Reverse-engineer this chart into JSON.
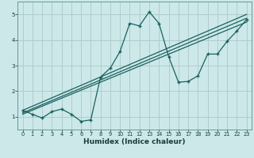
{
  "title": "",
  "xlabel": "Humidex (Indice chaleur)",
  "ylabel": "",
  "bg_color": "#cce8e8",
  "grid_color": "#b0cccc",
  "line_color": "#1a6060",
  "xlim": [
    -0.5,
    23.5
  ],
  "ylim": [
    0.5,
    5.5
  ],
  "xticks": [
    0,
    1,
    2,
    3,
    4,
    5,
    6,
    7,
    8,
    9,
    10,
    11,
    12,
    13,
    14,
    15,
    16,
    17,
    18,
    19,
    20,
    21,
    22,
    23
  ],
  "yticks": [
    1,
    2,
    3,
    4,
    5
  ],
  "main_x": [
    0,
    1,
    2,
    3,
    4,
    5,
    6,
    7,
    8,
    9,
    10,
    11,
    12,
    13,
    14,
    15,
    16,
    17,
    18,
    19,
    20,
    21,
    22,
    23
  ],
  "main_y": [
    1.25,
    1.1,
    0.95,
    1.2,
    1.3,
    1.1,
    0.82,
    0.88,
    2.55,
    2.9,
    3.55,
    4.65,
    4.55,
    5.1,
    4.65,
    3.35,
    2.35,
    2.38,
    2.6,
    3.45,
    3.45,
    3.95,
    4.35,
    4.8
  ],
  "trend1_x": [
    0,
    23
  ],
  "trend1_y": [
    1.15,
    4.85
  ],
  "trend2_x": [
    0,
    23
  ],
  "trend2_y": [
    1.25,
    5.0
  ],
  "trend3_x": [
    0,
    23
  ],
  "trend3_y": [
    1.1,
    4.7
  ]
}
